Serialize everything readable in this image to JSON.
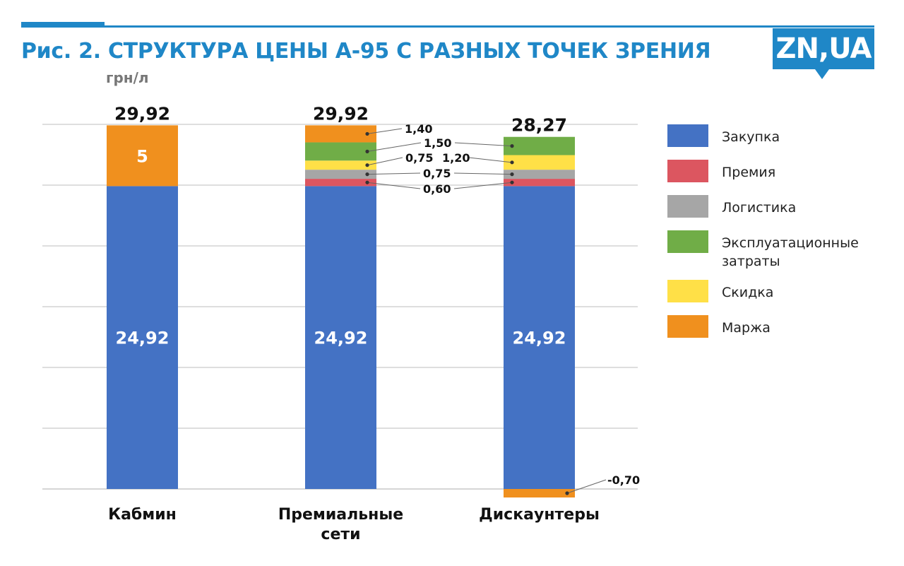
{
  "header": {
    "title": "Рис. 2. СТРУКТУРА ЦЕНЫ А-95 С РАЗНЫХ ТОЧЕК ЗРЕНИЯ",
    "unit": "грн/л",
    "logo_text": "ZN,UA"
  },
  "colors": {
    "accent": "#1f87c7",
    "zakupka": "#4472c4",
    "premiya": "#dc5660",
    "logistika": "#a6a6a6",
    "expl": "#70ad47",
    "skidka": "#ffe047",
    "marzha": "#f0901e"
  },
  "legend": [
    {
      "label": "Закупка",
      "color": "#4472c4"
    },
    {
      "label": "Премия",
      "color": "#dc5660"
    },
    {
      "label": "Логистика",
      "color": "#a6a6a6"
    },
    {
      "label": "Эксплуатационные затраты",
      "color": "#70ad47"
    },
    {
      "label": "Скидка",
      "color": "#ffe047"
    },
    {
      "label": "Маржа",
      "color": "#f0901e"
    }
  ],
  "chart_data": {
    "type": "bar",
    "stacked": true,
    "unit": "грн/л",
    "grid": true,
    "legend_position": "right",
    "ylim": [
      0,
      30
    ],
    "categories": [
      {
        "label_lines": [
          "Кабмин"
        ],
        "total_label": "29,92"
      },
      {
        "label_lines": [
          "Премиальные",
          "сети"
        ],
        "total_label": "29,92"
      },
      {
        "label_lines": [
          "Дискаунтеры"
        ],
        "total_label": "28,27"
      }
    ],
    "series": [
      {
        "name": "Закупка",
        "color": "#4472c4",
        "values": [
          24.92,
          24.92,
          24.92
        ],
        "labels": [
          "24,92",
          "24,92",
          "24,92"
        ]
      },
      {
        "name": "Премия",
        "color": "#dc5660",
        "values": [
          0,
          0.6,
          0.6
        ],
        "labels": [
          "",
          "0,60",
          ""
        ]
      },
      {
        "name": "Логистика",
        "color": "#a6a6a6",
        "values": [
          0,
          0.75,
          0.75
        ],
        "labels": [
          "",
          "0,75",
          ""
        ]
      },
      {
        "name": "Скидка",
        "color": "#ffe047",
        "values": [
          0,
          0.75,
          1.2
        ],
        "labels": [
          "",
          "0,75",
          "1,20"
        ]
      },
      {
        "name": "Эксплуатационные затраты",
        "color": "#70ad47",
        "values": [
          0,
          1.5,
          1.5
        ],
        "labels": [
          "",
          "1,50",
          ""
        ]
      },
      {
        "name": "Маржа",
        "color": "#f0901e",
        "values": [
          5,
          1.4,
          -0.7
        ],
        "labels": [
          "5",
          "1,40",
          "-0,70"
        ]
      }
    ]
  }
}
